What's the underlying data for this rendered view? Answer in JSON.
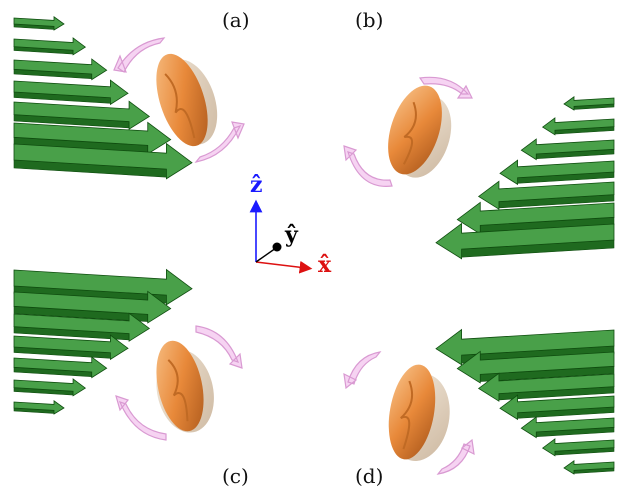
{
  "panels": [
    {
      "id": "a",
      "label": "(a)",
      "flow_direction": "right",
      "rotation": "clockwise"
    },
    {
      "id": "b",
      "label": "(b)",
      "flow_direction": "left",
      "rotation": "counterclockwise"
    },
    {
      "id": "c",
      "label": "(c)",
      "flow_direction": "right",
      "rotation": "clockwise"
    },
    {
      "id": "d",
      "label": "(d)",
      "flow_direction": "left",
      "rotation": "counterclockwise"
    }
  ],
  "axes": {
    "z_label": "ẑ",
    "y_label": "ŷ",
    "x_label": "x̂",
    "z_color": "#1a1aff",
    "y_color": "#000000",
    "x_color": "#dd1111"
  },
  "colors": {
    "arrow_top": "#49a049",
    "arrow_side": "#1f6a1f",
    "arrow_dark": "#0f4d0f",
    "particle_light": "#f2a25a",
    "particle_dark": "#b8651f",
    "particle_ghost": "#c9b497",
    "rotation_arrow": "#f4c8f0",
    "rotation_stroke": "#d58fcf"
  },
  "icons": [
    "green-shear-arrow-icon",
    "orange-particle-icon",
    "pink-rotation-arrow-icon",
    "axis-triad-icon"
  ]
}
